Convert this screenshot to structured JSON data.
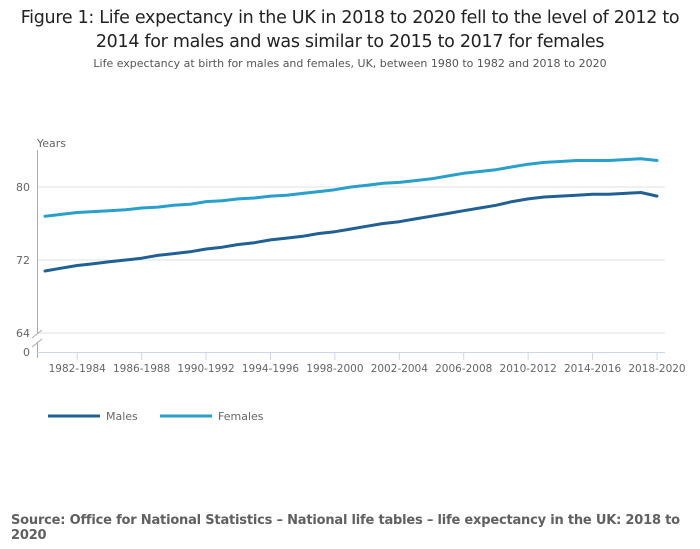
{
  "chart_data": {
    "type": "line",
    "title": "Figure 1: Life expectancy in the UK in 2018 to 2020 fell to the level of 2012 to 2014 for males and was similar to 2015 to 2017 for females",
    "subtitle": "Life expectancy at birth for males and females, UK, between 1980 to 1982 and 2018 to 2020",
    "ylabel": "Years",
    "xlabel": "",
    "ylim": [
      64,
      84
    ],
    "y_axis_break": true,
    "yticks": [
      "0",
      "64",
      "72",
      "80"
    ],
    "grid": true,
    "legend_position": "bottom-left",
    "categories": [
      "1980-1982",
      "1981-1983",
      "1982-1984",
      "1983-1985",
      "1984-1986",
      "1985-1987",
      "1986-1988",
      "1987-1989",
      "1988-1990",
      "1989-1991",
      "1990-1992",
      "1991-1993",
      "1992-1994",
      "1993-1995",
      "1994-1996",
      "1995-1997",
      "1996-1998",
      "1997-1999",
      "1998-2000",
      "1999-2001",
      "2000-2002",
      "2001-2003",
      "2002-2004",
      "2003-2005",
      "2004-2006",
      "2005-2007",
      "2006-2008",
      "2007-2009",
      "2008-2010",
      "2009-2011",
      "2010-2012",
      "2011-2013",
      "2012-2014",
      "2013-2015",
      "2014-2016",
      "2015-2017",
      "2016-2018",
      "2017-2019",
      "2018-2020"
    ],
    "xtick_labels": [
      "1982-1984",
      "1986-1988",
      "1990-1992",
      "1994-1996",
      "1998-2000",
      "2002-2004",
      "2006-2008",
      "2010-2012",
      "2014-2016",
      "2018-2020"
    ],
    "series": [
      {
        "name": "Males",
        "color": "#206095",
        "values": [
          70.8,
          71.1,
          71.4,
          71.6,
          71.8,
          72.0,
          72.2,
          72.5,
          72.7,
          72.9,
          73.2,
          73.4,
          73.7,
          73.9,
          74.2,
          74.4,
          74.6,
          74.9,
          75.1,
          75.4,
          75.7,
          76.0,
          76.2,
          76.5,
          76.8,
          77.1,
          77.4,
          77.7,
          78.0,
          78.4,
          78.7,
          78.9,
          79.0,
          79.1,
          79.2,
          79.2,
          79.3,
          79.4,
          79.0
        ]
      },
      {
        "name": "Females",
        "color": "#27a0cc",
        "values": [
          76.8,
          77.0,
          77.2,
          77.3,
          77.4,
          77.5,
          77.7,
          77.8,
          78.0,
          78.1,
          78.4,
          78.5,
          78.7,
          78.8,
          79.0,
          79.1,
          79.3,
          79.5,
          79.7,
          80.0,
          80.2,
          80.4,
          80.5,
          80.7,
          80.9,
          81.2,
          81.5,
          81.7,
          81.9,
          82.2,
          82.5,
          82.7,
          82.8,
          82.9,
          82.9,
          82.9,
          83.0,
          83.1,
          82.9
        ]
      }
    ],
    "source": "Source: Office for National Statistics – National life tables – life expectancy in the UK: 2018 to 2020"
  }
}
